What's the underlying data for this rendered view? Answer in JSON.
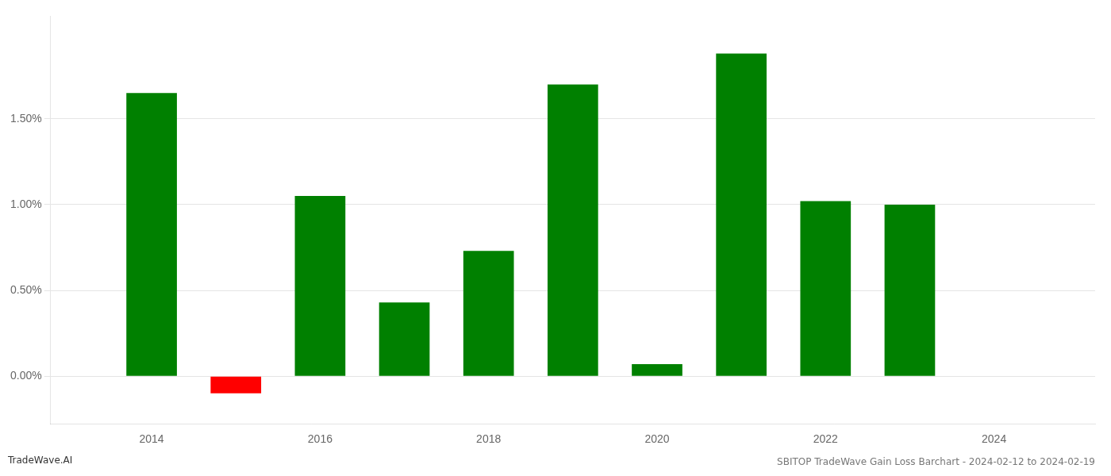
{
  "chart_data": {
    "type": "bar",
    "title": "SBITOP TradeWave Gain Loss Barchart - 2024-02-12 to 2024-02-19",
    "annotations": [
      "TradeWave.AI"
    ],
    "x": [
      2014,
      2015,
      2016,
      2017,
      2018,
      2019,
      2020,
      2021,
      2022,
      2023
    ],
    "values": [
      1.65,
      -0.1,
      1.05,
      0.43,
      0.73,
      1.7,
      0.07,
      1.88,
      1.02,
      1.0
    ],
    "colors": [
      "#008000",
      "#ff0000",
      "#008000",
      "#008000",
      "#008000",
      "#008000",
      "#008000",
      "#008000",
      "#008000",
      "#008000"
    ],
    "xlim": [
      2012.8,
      2025.2
    ],
    "xticks": [
      2014,
      2016,
      2018,
      2020,
      2022,
      2024
    ],
    "ylim": [
      -0.28,
      2.1
    ],
    "yticks": [
      {
        "value": 0.0,
        "label": "0.00%"
      },
      {
        "value": 0.5,
        "label": "0.50%"
      },
      {
        "value": 1.0,
        "label": "1.00%"
      },
      {
        "value": 1.5,
        "label": "1.50%"
      }
    ],
    "grid": true
  }
}
